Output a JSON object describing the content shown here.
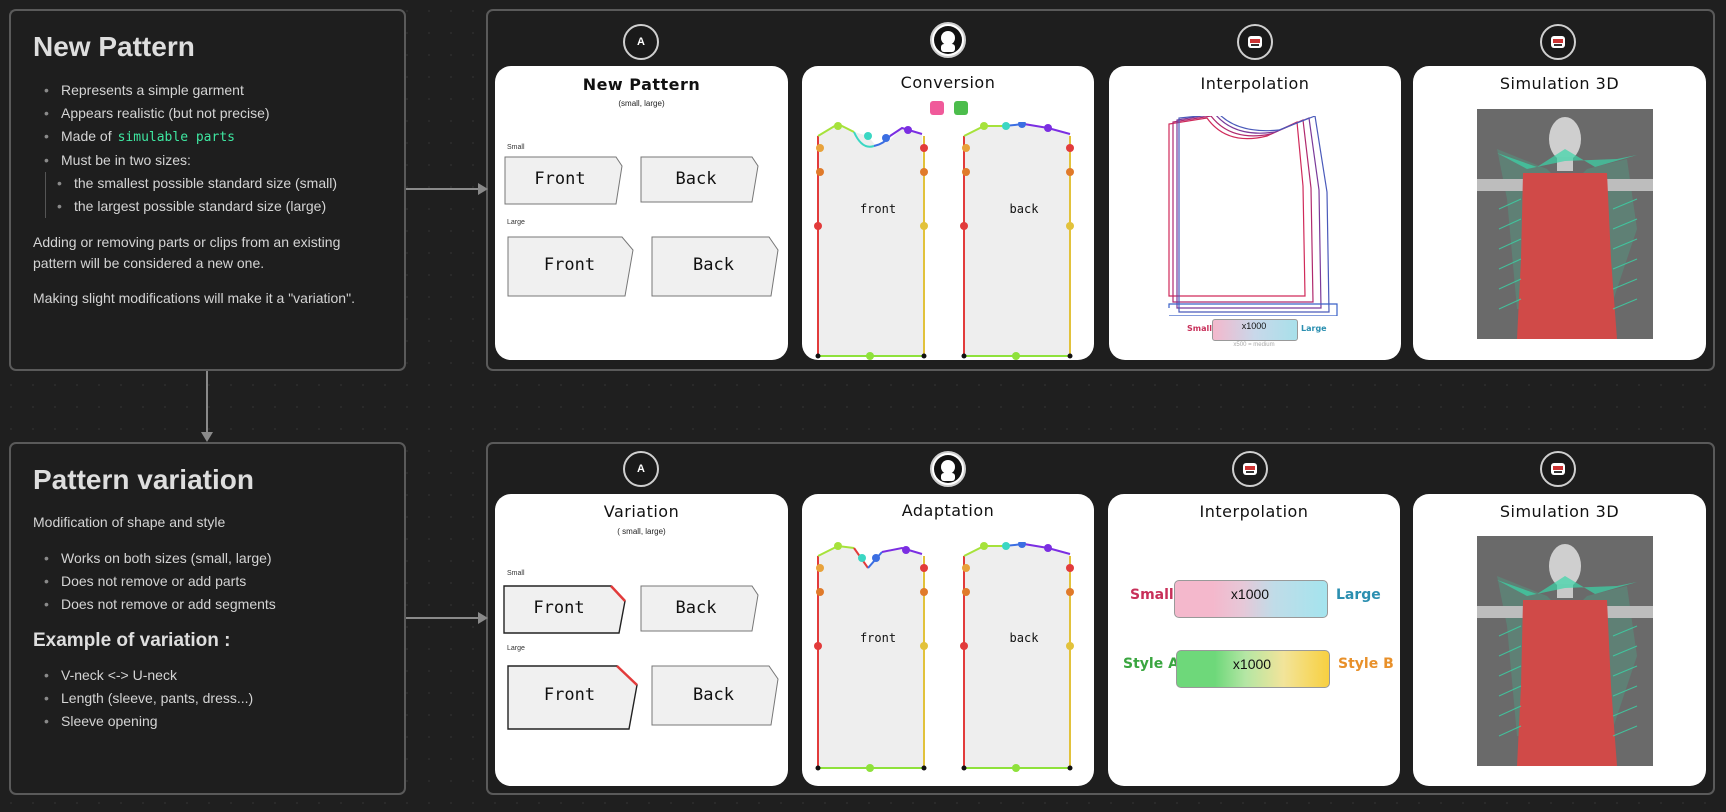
{
  "new_pattern": {
    "title": "New Pattern",
    "bullets": [
      "Represents a simple garment",
      "Appears realistic (but not precise)",
      "Made of",
      "Must be in two sizes:"
    ],
    "simulable": "simulable parts",
    "sub_bullets": [
      "the smallest possible standard size (small)",
      "the largest possible standard size (large)"
    ],
    "para1": "Adding or removing parts or clips from an existing pattern will be considered a new one.",
    "para2": "Making slight modifications will make it a \"variation\"."
  },
  "pattern_variation": {
    "title": "Pattern variation",
    "intro": "Modification of shape and style",
    "bullets": [
      "Works on both sizes (small, large)",
      "Does not remove or add parts",
      "Does not remove or add segments"
    ],
    "example_title": "Example of variation :",
    "example_bullets": [
      "V-neck <-> U-neck",
      "Length (sleeve, pants, dress...)",
      "Sleeve opening"
    ]
  },
  "row1": {
    "card1": {
      "title": "New Pattern",
      "subtitle": "(small, large)",
      "small": "Small",
      "large": "Large",
      "front": "Front",
      "back": "Back"
    },
    "card2": {
      "title": "Conversion",
      "front": "front",
      "back": "back"
    },
    "card3": {
      "title": "Interpolation",
      "small": "Small",
      "large": "Large",
      "value": "x1000",
      "note": "x500 = medium"
    },
    "card4": {
      "title": "Simulation 3D"
    }
  },
  "row2": {
    "card1": {
      "title": "Variation",
      "subtitle": "( small, large)",
      "small": "Small",
      "large": "Large",
      "front": "Front",
      "back": "Back"
    },
    "card2": {
      "title": "Adaptation",
      "front": "front",
      "back": "back"
    },
    "card3": {
      "title": "Interpolation",
      "small": "Small",
      "large": "Large",
      "value1": "x1000",
      "style_a": "Style A",
      "style_b": "Style B",
      "value2": "x1000"
    },
    "card4": {
      "title": "Simulation 3D"
    }
  },
  "icons": [
    "letter-a-icon",
    "avatar-icon",
    "robot-icon",
    "robot-icon"
  ],
  "icon_letter": "A",
  "colors": {
    "accent_green": "#3ee6a0",
    "small_pink": "#c8305a",
    "large_blue": "#2b8fb0",
    "style_a_green": "#3aa640",
    "style_b_orange": "#e8902a",
    "garment_red": "#c9403e"
  }
}
